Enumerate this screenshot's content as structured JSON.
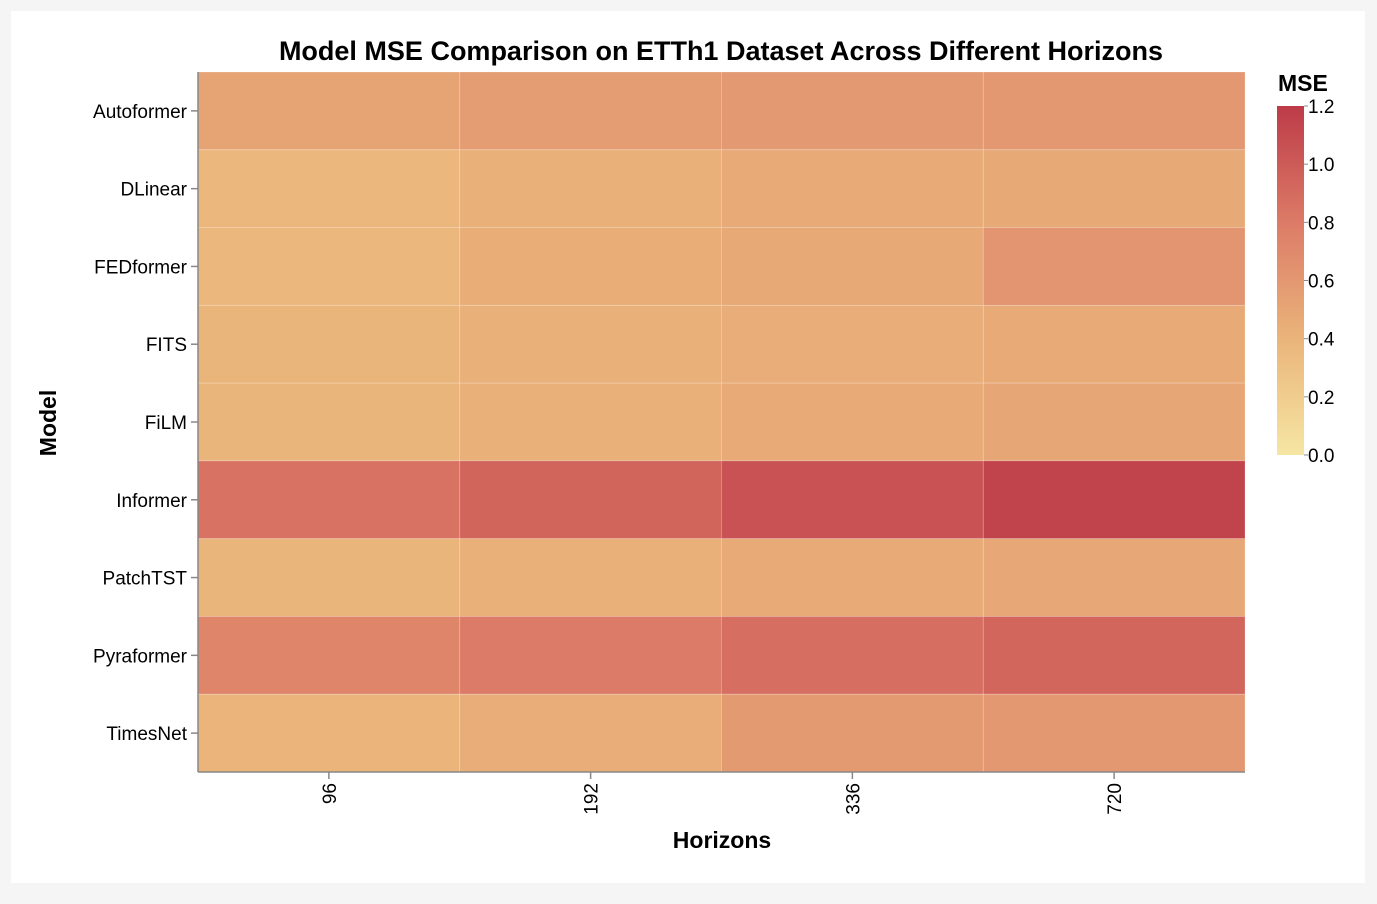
{
  "chart_data": {
    "type": "heatmap",
    "title": "Model MSE Comparison on ETTh1 Dataset Across Different Horizons",
    "xlabel": "Horizons",
    "ylabel": "Model",
    "x": [
      "96",
      "192",
      "336",
      "720"
    ],
    "y": [
      "Autoformer",
      "DLinear",
      "FEDformer",
      "FITS",
      "FiLM",
      "Informer",
      "PatchTST",
      "Pyraformer",
      "TimesNet"
    ],
    "values": [
      [
        0.51,
        0.56,
        0.59,
        0.6
      ],
      [
        0.38,
        0.42,
        0.46,
        0.48
      ],
      [
        0.38,
        0.44,
        0.48,
        0.62
      ],
      [
        0.39,
        0.43,
        0.45,
        0.46
      ],
      [
        0.39,
        0.43,
        0.46,
        0.5
      ],
      [
        0.85,
        0.94,
        1.05,
        1.15
      ],
      [
        0.39,
        0.43,
        0.46,
        0.49
      ],
      [
        0.73,
        0.8,
        0.88,
        0.93
      ],
      [
        0.4,
        0.45,
        0.58,
        0.6
      ]
    ],
    "colorbar": {
      "title": "MSE",
      "range": [
        0,
        1.2
      ],
      "ticks": [
        0.0,
        0.2,
        0.4,
        0.6,
        0.8,
        1.0,
        1.2
      ],
      "tick_labels": [
        "0.0",
        "0.2",
        "0.4",
        "0.6",
        "0.8",
        "1.0",
        "1.2"
      ],
      "colors": [
        "#f6e6a4",
        "#eab47a",
        "#dc7b67",
        "#bd3b48"
      ],
      "legend_position": "right"
    }
  }
}
